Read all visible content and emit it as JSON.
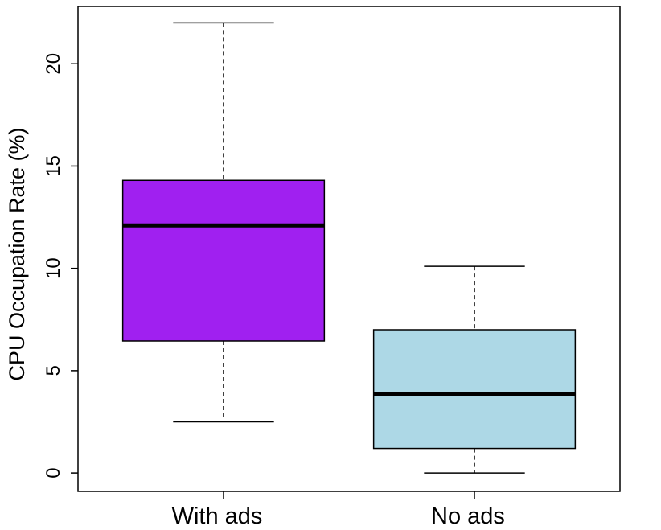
{
  "chart_data": {
    "type": "boxplot",
    "y_label": "CPU Occupation Rate (%)",
    "categories": [
      "With ads",
      "No ads"
    ],
    "boxes": [
      {
        "min": 2.5,
        "q1": 6.45,
        "median": 12.1,
        "q3": 14.3,
        "max": 22,
        "color": "#a020f0"
      },
      {
        "min": 0,
        "q1": 1.2,
        "median": 3.85,
        "q3": 7.0,
        "max": 10.1,
        "color": "#add8e6"
      }
    ],
    "ylim": [
      -0.9,
      22.8
    ],
    "yticks": [
      0,
      5,
      10,
      15,
      20
    ]
  }
}
